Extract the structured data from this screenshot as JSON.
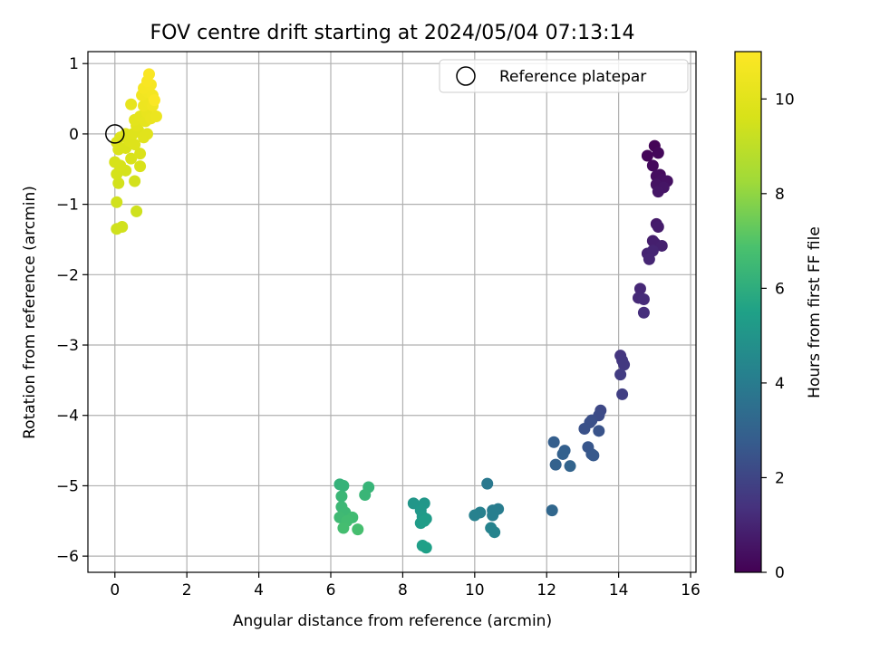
{
  "chart_data": {
    "type": "scatter",
    "title": "FOV centre drift starting at 2024/05/04 07:13:14",
    "xlabel": "Angular distance from reference (arcmin)",
    "ylabel": "Rotation from reference (arcmin)",
    "xlim": [
      -0.75,
      16.15
    ],
    "ylim": [
      -6.23,
      1.17
    ],
    "xticks": [
      0,
      2,
      4,
      6,
      8,
      10,
      12,
      14,
      16
    ],
    "yticks": [
      -6,
      -5,
      -4,
      -3,
      -2,
      -1,
      0,
      1
    ],
    "grid": true,
    "legend": {
      "placement": "top-right",
      "entries": [
        "Reference platepar"
      ]
    },
    "reference_point": {
      "x": 0,
      "y": 0
    },
    "colorbar": {
      "label": "Hours from first FF file",
      "min": 0,
      "max": 11,
      "ticks": [
        0,
        2,
        4,
        6,
        8,
        10
      ],
      "colormap": "viridis"
    },
    "points": [
      {
        "x": 15.0,
        "y": -0.17,
        "c": 0.1
      },
      {
        "x": 14.8,
        "y": -0.31,
        "c": 0.15
      },
      {
        "x": 15.1,
        "y": -0.27,
        "c": 0.2
      },
      {
        "x": 14.95,
        "y": -0.45,
        "c": 0.25
      },
      {
        "x": 15.15,
        "y": -0.58,
        "c": 0.3
      },
      {
        "x": 15.05,
        "y": -0.6,
        "c": 0.35
      },
      {
        "x": 15.2,
        "y": -0.65,
        "c": 0.4
      },
      {
        "x": 15.35,
        "y": -0.67,
        "c": 0.45
      },
      {
        "x": 15.05,
        "y": -0.72,
        "c": 0.5
      },
      {
        "x": 15.25,
        "y": -0.76,
        "c": 0.55
      },
      {
        "x": 15.1,
        "y": -0.82,
        "c": 0.6
      },
      {
        "x": 15.05,
        "y": -1.28,
        "c": 0.7
      },
      {
        "x": 15.1,
        "y": -1.32,
        "c": 0.75
      },
      {
        "x": 14.95,
        "y": -1.52,
        "c": 0.8
      },
      {
        "x": 15.0,
        "y": -1.55,
        "c": 0.85
      },
      {
        "x": 15.2,
        "y": -1.59,
        "c": 0.9
      },
      {
        "x": 14.8,
        "y": -1.7,
        "c": 0.95
      },
      {
        "x": 14.95,
        "y": -1.66,
        "c": 1.0
      },
      {
        "x": 14.85,
        "y": -1.78,
        "c": 1.05
      },
      {
        "x": 14.6,
        "y": -2.2,
        "c": 1.1
      },
      {
        "x": 14.55,
        "y": -2.33,
        "c": 1.15
      },
      {
        "x": 14.7,
        "y": -2.35,
        "c": 1.2
      },
      {
        "x": 14.7,
        "y": -2.54,
        "c": 1.3
      },
      {
        "x": 14.05,
        "y": -3.15,
        "c": 1.5
      },
      {
        "x": 14.1,
        "y": -3.22,
        "c": 1.55
      },
      {
        "x": 14.15,
        "y": -3.28,
        "c": 1.6
      },
      {
        "x": 14.05,
        "y": -3.42,
        "c": 1.7
      },
      {
        "x": 14.1,
        "y": -3.7,
        "c": 1.8
      },
      {
        "x": 13.5,
        "y": -3.93,
        "c": 2.1
      },
      {
        "x": 13.45,
        "y": -4.0,
        "c": 2.2
      },
      {
        "x": 13.25,
        "y": -4.07,
        "c": 2.3
      },
      {
        "x": 13.2,
        "y": -4.1,
        "c": 2.35
      },
      {
        "x": 13.05,
        "y": -4.19,
        "c": 2.4
      },
      {
        "x": 13.45,
        "y": -4.22,
        "c": 2.45
      },
      {
        "x": 13.15,
        "y": -4.45,
        "c": 2.55
      },
      {
        "x": 13.25,
        "y": -4.55,
        "c": 2.6
      },
      {
        "x": 13.3,
        "y": -4.57,
        "c": 2.65
      },
      {
        "x": 12.2,
        "y": -4.38,
        "c": 2.85
      },
      {
        "x": 12.5,
        "y": -4.5,
        "c": 2.9
      },
      {
        "x": 12.45,
        "y": -4.55,
        "c": 2.95
      },
      {
        "x": 12.25,
        "y": -4.7,
        "c": 3.0
      },
      {
        "x": 12.65,
        "y": -4.72,
        "c": 3.05
      },
      {
        "x": 12.15,
        "y": -5.35,
        "c": 3.2
      },
      {
        "x": 10.35,
        "y": -4.97,
        "c": 3.85
      },
      {
        "x": 10.5,
        "y": -5.35,
        "c": 3.95
      },
      {
        "x": 10.65,
        "y": -5.33,
        "c": 4.0
      },
      {
        "x": 10.55,
        "y": -5.36,
        "c": 4.05
      },
      {
        "x": 10.5,
        "y": -5.42,
        "c": 4.1
      },
      {
        "x": 10.15,
        "y": -5.38,
        "c": 4.15
      },
      {
        "x": 10.0,
        "y": -5.42,
        "c": 4.2
      },
      {
        "x": 10.45,
        "y": -5.6,
        "c": 4.25
      },
      {
        "x": 10.55,
        "y": -5.66,
        "c": 4.3
      },
      {
        "x": 8.3,
        "y": -5.25,
        "c": 5.05
      },
      {
        "x": 8.6,
        "y": -5.25,
        "c": 5.1
      },
      {
        "x": 8.5,
        "y": -5.35,
        "c": 5.15
      },
      {
        "x": 8.55,
        "y": -5.44,
        "c": 5.2
      },
      {
        "x": 8.65,
        "y": -5.47,
        "c": 5.25
      },
      {
        "x": 8.5,
        "y": -5.53,
        "c": 5.3
      },
      {
        "x": 8.6,
        "y": -5.5,
        "c": 5.35
      },
      {
        "x": 8.55,
        "y": -5.85,
        "c": 5.4
      },
      {
        "x": 8.65,
        "y": -5.88,
        "c": 5.45
      },
      {
        "x": 6.25,
        "y": -4.98,
        "c": 6.2
      },
      {
        "x": 6.35,
        "y": -5.0,
        "c": 6.25
      },
      {
        "x": 7.05,
        "y": -5.02,
        "c": 6.3
      },
      {
        "x": 6.95,
        "y": -5.13,
        "c": 6.35
      },
      {
        "x": 6.3,
        "y": -5.15,
        "c": 6.4
      },
      {
        "x": 6.3,
        "y": -5.3,
        "c": 6.45
      },
      {
        "x": 6.4,
        "y": -5.38,
        "c": 6.5
      },
      {
        "x": 6.25,
        "y": -5.45,
        "c": 6.55
      },
      {
        "x": 6.6,
        "y": -5.45,
        "c": 6.6
      },
      {
        "x": 6.45,
        "y": -5.5,
        "c": 6.65
      },
      {
        "x": 6.35,
        "y": -5.6,
        "c": 6.7
      },
      {
        "x": 6.75,
        "y": -5.62,
        "c": 6.75
      },
      {
        "x": 0.6,
        "y": -1.1,
        "c": 9.4
      },
      {
        "x": 0.05,
        "y": -1.35,
        "c": 9.4
      },
      {
        "x": 0.2,
        "y": -1.32,
        "c": 9.45
      },
      {
        "x": 0.05,
        "y": -0.97,
        "c": 9.45
      },
      {
        "x": 0.1,
        "y": -0.7,
        "c": 9.5
      },
      {
        "x": 0.55,
        "y": -0.67,
        "c": 9.5
      },
      {
        "x": 0.05,
        "y": -0.57,
        "c": 9.55
      },
      {
        "x": 0.3,
        "y": -0.52,
        "c": 9.55
      },
      {
        "x": 0.0,
        "y": -0.4,
        "c": 9.6
      },
      {
        "x": 0.15,
        "y": -0.45,
        "c": 9.6
      },
      {
        "x": 0.7,
        "y": -0.46,
        "c": 9.65
      },
      {
        "x": 0.45,
        "y": -0.35,
        "c": 9.65
      },
      {
        "x": 0.1,
        "y": -0.22,
        "c": 9.7
      },
      {
        "x": 0.3,
        "y": -0.2,
        "c": 9.7
      },
      {
        "x": 0.7,
        "y": -0.28,
        "c": 9.75
      },
      {
        "x": 0.05,
        "y": -0.12,
        "c": 9.75
      },
      {
        "x": 0.15,
        "y": -0.05,
        "c": 9.8
      },
      {
        "x": 0.4,
        "y": -0.1,
        "c": 9.8
      },
      {
        "x": 0.55,
        "y": -0.15,
        "c": 9.85
      },
      {
        "x": 0.3,
        "y": 0.0,
        "c": 9.85
      },
      {
        "x": 0.5,
        "y": 0.0,
        "c": 9.9
      },
      {
        "x": 0.65,
        "y": 0.05,
        "c": 9.9
      },
      {
        "x": 0.8,
        "y": -0.05,
        "c": 9.95
      },
      {
        "x": 0.9,
        "y": 0.0,
        "c": 9.95
      },
      {
        "x": 0.6,
        "y": 0.12,
        "c": 10.0
      },
      {
        "x": 0.55,
        "y": 0.2,
        "c": 10.05
      },
      {
        "x": 0.7,
        "y": 0.25,
        "c": 10.1
      },
      {
        "x": 0.85,
        "y": 0.18,
        "c": 10.15
      },
      {
        "x": 0.45,
        "y": 0.42,
        "c": 10.2
      },
      {
        "x": 0.9,
        "y": 0.3,
        "c": 10.25
      },
      {
        "x": 1.0,
        "y": 0.22,
        "c": 10.3
      },
      {
        "x": 1.15,
        "y": 0.25,
        "c": 10.35
      },
      {
        "x": 0.8,
        "y": 0.4,
        "c": 10.4
      },
      {
        "x": 0.95,
        "y": 0.45,
        "c": 10.45
      },
      {
        "x": 1.05,
        "y": 0.4,
        "c": 10.5
      },
      {
        "x": 0.75,
        "y": 0.55,
        "c": 10.55
      },
      {
        "x": 0.9,
        "y": 0.6,
        "c": 10.6
      },
      {
        "x": 1.05,
        "y": 0.55,
        "c": 10.65
      },
      {
        "x": 0.8,
        "y": 0.65,
        "c": 10.7
      },
      {
        "x": 1.0,
        "y": 0.7,
        "c": 10.75
      },
      {
        "x": 0.9,
        "y": 0.75,
        "c": 10.8
      },
      {
        "x": 0.95,
        "y": 0.85,
        "c": 10.85
      },
      {
        "x": 1.1,
        "y": 0.48,
        "c": 10.9
      }
    ]
  }
}
